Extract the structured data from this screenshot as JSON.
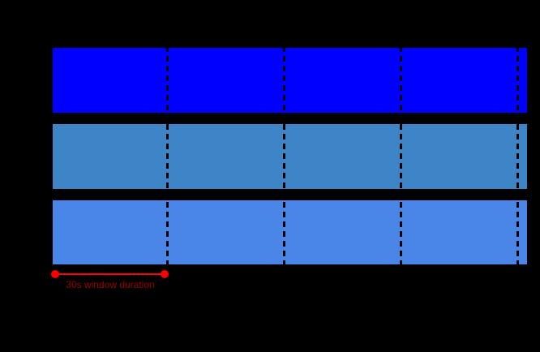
{
  "canvas": {
    "background": "#000000"
  },
  "diagram": {
    "type": "stream-window-diagram",
    "bars": [
      {
        "id": "stream-bar-1",
        "color": "#0000FF"
      },
      {
        "id": "stream-bar-2",
        "color": "#3D85C6"
      },
      {
        "id": "stream-bar-3",
        "color": "#4A86E8"
      }
    ],
    "boundary": {
      "color": "#000000",
      "count": 4
    },
    "annotation": {
      "label": "30s window duration",
      "line_color": "#FF0000",
      "marker_color": "#FF0000",
      "text_color": "#990000"
    }
  }
}
